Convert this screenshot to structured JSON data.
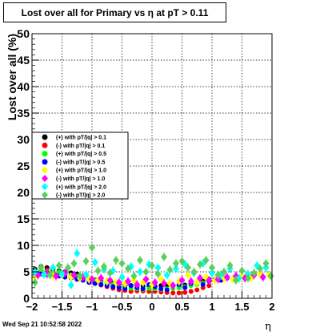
{
  "title": "Lost over all for Primary vs   η at pT > 0.11",
  "timestamp": "Wed Sep 21 10:52:58 2022",
  "chart_data": {
    "type": "scatter",
    "title": "Lost over all for Primary vs   η at pT > 0.11",
    "xlabel": "η",
    "ylabel": "Lost over all (%)",
    "xlim": [
      -2,
      2
    ],
    "ylim": [
      0,
      50
    ],
    "xticks": [
      -2,
      -1.5,
      -1,
      -0.5,
      0,
      0.5,
      1,
      1.5,
      2
    ],
    "xtick_labels": [
      "−2",
      "−1.5",
      "−1",
      "−0.5",
      "0",
      "0.5",
      "1",
      "1.5",
      "2"
    ],
    "yticks": [
      0,
      5,
      10,
      15,
      20,
      25,
      30,
      35,
      40,
      45,
      50
    ],
    "ytick_labels": [
      "0",
      "5",
      "10",
      "15",
      "20",
      "25",
      "30",
      "35",
      "40",
      "45",
      "50"
    ],
    "grid": true,
    "legend_position": "center-left",
    "series": [
      {
        "name": "(+) with pT/|q| > 0.1",
        "color": "#000000",
        "marker": "circle",
        "x": [
          -1.95,
          -1.85,
          -1.75,
          -1.65,
          -1.55,
          -1.45,
          -1.35,
          -1.25,
          -1.15,
          -1.05,
          -0.95,
          -0.85,
          -0.75,
          -0.65,
          -0.55,
          -0.45,
          -0.35,
          -0.25,
          -0.15,
          -0.05,
          0.05,
          0.15,
          0.25,
          0.35,
          0.45,
          0.55,
          0.65,
          0.75,
          0.85,
          0.95
        ],
        "y": [
          5.5,
          6.0,
          5.8,
          5.5,
          5.2,
          5.0,
          4.8,
          4.6,
          4.2,
          3.8,
          3.5,
          3.2,
          3.0,
          2.8,
          2.6,
          2.5,
          2.4,
          2.4,
          2.3,
          2.3,
          2.3,
          2.4,
          2.5,
          2.4,
          2.4,
          2.5,
          2.7,
          2.9,
          3.2,
          3.6
        ]
      },
      {
        "name": "(-) with pT/|q| > 0.1",
        "color": "#ff0000",
        "marker": "circle",
        "x": [
          -1.95,
          -1.85,
          -1.75,
          -1.65,
          -1.55,
          -1.45,
          -1.35,
          -1.25,
          -1.15,
          -1.05,
          -0.95,
          -0.85,
          -0.75,
          -0.65,
          -0.55,
          -0.45,
          -0.35,
          -0.25,
          -0.15,
          -0.05,
          0.05,
          0.15,
          0.25,
          0.35,
          0.45,
          0.55,
          0.65,
          0.75,
          0.85,
          0.95
        ],
        "y": [
          5.0,
          5.2,
          5.4,
          5.0,
          4.6,
          4.4,
          4.2,
          4.0,
          3.6,
          3.2,
          2.8,
          2.5,
          2.2,
          1.9,
          1.6,
          1.5,
          1.3,
          1.4,
          1.4,
          1.3,
          1.3,
          1.2,
          1.1,
          1.0,
          1.0,
          1.1,
          1.3,
          1.6,
          2.0,
          2.4
        ]
      },
      {
        "name": "(+) with pT/|q| > 0.5",
        "color": "#00ff00",
        "marker": "circle",
        "x": [
          -1.95,
          -1.85,
          -1.75,
          -1.65,
          -1.55,
          -1.45,
          -1.35,
          -1.25,
          -1.15,
          -1.05,
          -0.95,
          -0.85,
          -0.75,
          -0.65,
          -0.55,
          -0.45,
          -0.35,
          -0.25,
          -0.15,
          -0.05,
          0.05,
          0.15,
          0.25,
          0.35,
          0.45,
          0.55,
          0.65,
          0.75,
          0.85,
          0.95
        ],
        "y": [
          4.8,
          5.2,
          5.0,
          4.8,
          5.0,
          4.6,
          4.4,
          4.2,
          4.0,
          3.8,
          3.4,
          3.0,
          2.8,
          2.6,
          2.2,
          2.0,
          1.9,
          1.8,
          1.7,
          1.9,
          1.8,
          1.7,
          1.8,
          1.9,
          2.0,
          2.2,
          2.4,
          2.6,
          2.9,
          3.2
        ]
      },
      {
        "name": "(-) with pT/|q| > 0.5",
        "color": "#0000ff",
        "marker": "circle",
        "x": [
          -1.95,
          -1.85,
          -1.75,
          -1.65,
          -1.55,
          -1.45,
          -1.35,
          -1.25,
          -1.15,
          -1.05,
          -0.95,
          -0.85,
          -0.75,
          -0.65,
          -0.55,
          -0.45,
          -0.35,
          -0.25,
          -0.15,
          -0.05,
          0.05,
          0.15,
          0.25,
          0.35,
          0.45,
          0.55,
          0.65,
          0.75,
          0.85,
          0.95,
          1.05,
          1.15,
          1.25
        ],
        "y": [
          4.4,
          4.6,
          4.8,
          4.4,
          4.2,
          4.0,
          3.8,
          3.6,
          3.4,
          3.0,
          2.8,
          2.6,
          2.4,
          2.2,
          2.0,
          1.8,
          2.4,
          2.0,
          1.8,
          2.6,
          2.2,
          1.8,
          1.6,
          2.4,
          2.6,
          2.0,
          2.8,
          3.0,
          2.6,
          3.2,
          3.6,
          3.4,
          3.8
        ]
      },
      {
        "name": "(+) with pT/|q| > 1.0",
        "color": "#ffff00",
        "marker": "diamond",
        "x": [
          -1.95,
          -1.8,
          -1.65,
          -1.5,
          -1.35,
          -1.2,
          -1.05,
          -0.9,
          -0.75,
          -0.6,
          -0.45,
          -0.3,
          -0.15,
          0.0,
          0.15,
          0.3,
          0.45,
          0.6,
          0.75,
          0.9,
          1.05,
          1.2,
          1.35,
          1.5,
          1.65,
          1.8,
          1.95
        ],
        "y": [
          4.0,
          4.5,
          4.2,
          4.4,
          4.0,
          3.8,
          3.6,
          3.4,
          3.2,
          3.0,
          2.8,
          3.4,
          3.0,
          2.6,
          3.6,
          2.8,
          3.2,
          4.4,
          3.0,
          4.0,
          3.4,
          3.8,
          3.6,
          4.2,
          3.8,
          4.6,
          4.4
        ]
      },
      {
        "name": "(-) with pT/|q| > 1.0",
        "color": "#ff00ff",
        "marker": "diamond",
        "x": [
          -1.9,
          -1.75,
          -1.6,
          -1.45,
          -1.3,
          -1.15,
          -1.0,
          -0.85,
          -0.7,
          -0.55,
          -0.4,
          -0.25,
          -0.1,
          0.05,
          0.2,
          0.35,
          0.5,
          0.65,
          0.8,
          0.95,
          1.1,
          1.25,
          1.4,
          1.55,
          1.7,
          1.85
        ],
        "y": [
          4.4,
          4.6,
          4.2,
          4.8,
          4.4,
          4.0,
          3.6,
          3.8,
          3.4,
          3.0,
          3.2,
          2.6,
          3.6,
          3.0,
          2.8,
          2.4,
          3.4,
          3.2,
          3.8,
          3.4,
          3.6,
          4.0,
          4.2,
          3.8,
          4.4,
          4.0
        ]
      },
      {
        "name": "(+) with pT/|q| > 2.0",
        "color": "#00ffff",
        "marker": "diamond",
        "x": [
          -1.95,
          -1.8,
          -1.65,
          -1.5,
          -1.35,
          -1.25,
          -1.1,
          -0.95,
          -0.8,
          -0.65,
          -0.5,
          -0.35,
          -0.2,
          -0.05,
          0.1,
          0.25,
          0.4,
          0.55,
          0.7,
          0.85,
          1.0,
          1.15,
          1.3,
          1.45,
          1.6,
          1.75,
          1.9
        ],
        "y": [
          5.0,
          4.5,
          5.8,
          4.6,
          2.5,
          8.5,
          4.5,
          6.8,
          5.5,
          5.2,
          4.0,
          6.0,
          5.0,
          6.4,
          5.8,
          4.4,
          5.6,
          6.4,
          4.8,
          6.6,
          4.8,
          4.4,
          5.6,
          3.8,
          4.6,
          6.2,
          5.8
        ]
      },
      {
        "name": "(-) with pT/|q| > 2.0",
        "color": "#5bcf5b",
        "marker": "diamond",
        "x": [
          -1.95,
          -1.85,
          -1.7,
          -1.55,
          -1.4,
          -1.3,
          -1.2,
          -1.1,
          -1.0,
          -0.9,
          -0.8,
          -0.7,
          -0.6,
          -0.5,
          -0.4,
          -0.3,
          -0.2,
          -0.1,
          0.0,
          0.1,
          0.2,
          0.3,
          0.4,
          0.5,
          0.6,
          0.7,
          0.8,
          0.9,
          1.0,
          1.1,
          1.2,
          1.3,
          1.4,
          1.5,
          1.6,
          1.7,
          1.8,
          1.9,
          1.98
        ],
        "y": [
          3.0,
          5.8,
          4.4,
          6.2,
          5.8,
          6.6,
          4.2,
          7.0,
          9.6,
          5.2,
          6.0,
          4.8,
          7.2,
          6.6,
          5.6,
          4.2,
          7.2,
          5.0,
          6.2,
          4.6,
          7.8,
          5.4,
          6.6,
          7.0,
          5.8,
          5.0,
          6.4,
          7.2,
          5.8,
          4.4,
          5.0,
          6.2,
          3.4,
          5.2,
          3.8,
          4.8,
          5.6,
          6.6,
          4.2
        ]
      }
    ]
  }
}
